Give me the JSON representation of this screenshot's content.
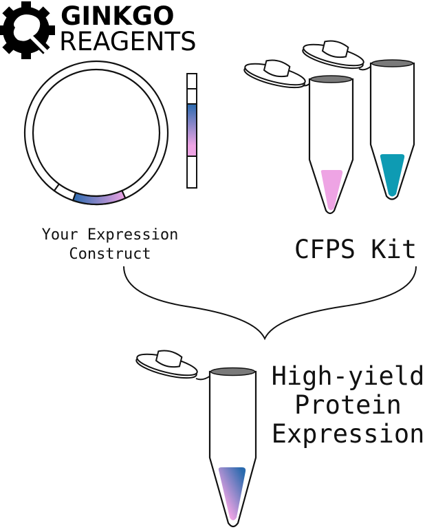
{
  "logo": {
    "line1": "GINKGO",
    "line2": "REAGENTS"
  },
  "labels": {
    "construct": [
      "Your Expression",
      "Construct"
    ],
    "kit": "CFPS Kit",
    "result": [
      "High-yield",
      "Protein",
      "Expression"
    ]
  },
  "colors": {
    "pink": "#eea4e4",
    "teal": "#0e9bb3",
    "blue": "#2a6aae",
    "tube_opening": "#7a7a7a"
  }
}
